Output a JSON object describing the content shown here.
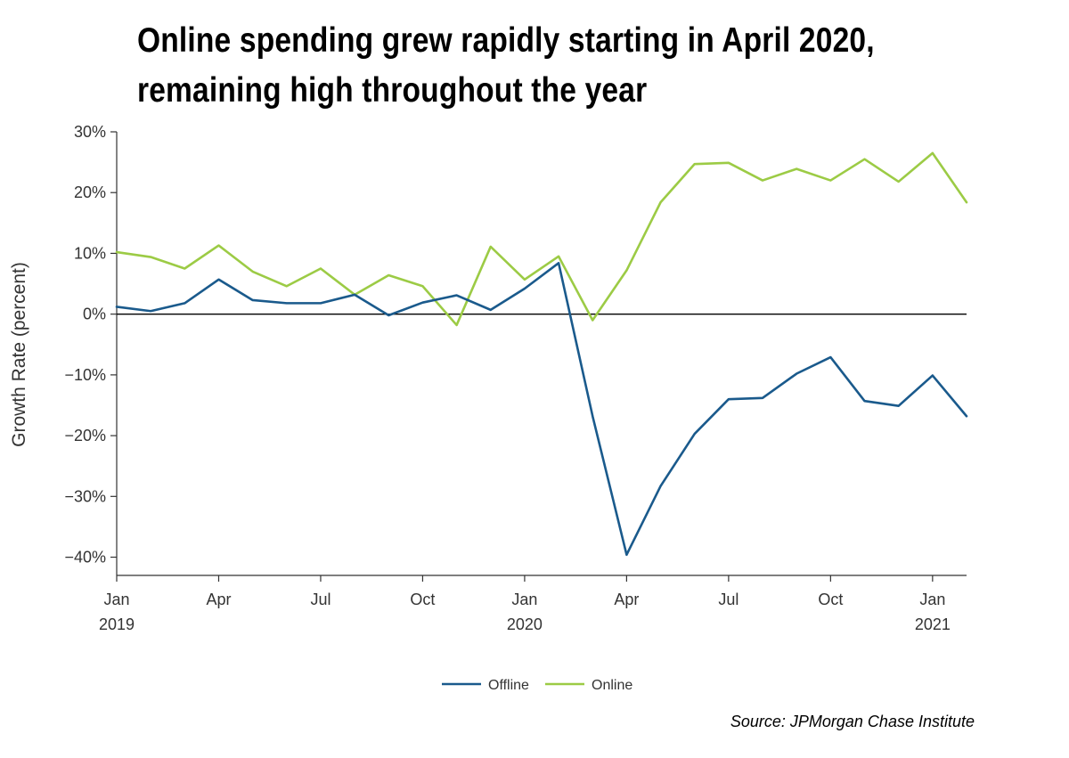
{
  "title_lines": [
    "Online spending grew rapidly starting in April 2020,",
    "remaining high throughout the year"
  ],
  "source": "Source: JPMorgan Chase Institute",
  "colors": {
    "offline": "#1a5a8c",
    "online": "#9ccb45",
    "axis": "#333333",
    "zero_line": "#000000"
  },
  "chart_data": {
    "type": "line",
    "title": "Online spending grew rapidly starting in April 2020, remaining high throughout the year",
    "xlabel": "",
    "ylabel": "Growth Rate (percent)",
    "ylim": [
      -43,
      30
    ],
    "yticks": [
      30,
      20,
      10,
      0,
      -10,
      -20,
      -30,
      -40
    ],
    "ytick_labels": [
      "30%",
      "20%",
      "10%",
      "0%",
      "−10%",
      "−20%",
      "−30%",
      "−40%"
    ],
    "x": [
      "2019-01",
      "2019-02",
      "2019-03",
      "2019-04",
      "2019-05",
      "2019-06",
      "2019-07",
      "2019-08",
      "2019-09",
      "2019-10",
      "2019-11",
      "2019-12",
      "2020-01",
      "2020-02",
      "2020-03",
      "2020-04",
      "2020-05",
      "2020-06",
      "2020-07",
      "2020-08",
      "2020-09",
      "2020-10",
      "2020-11",
      "2020-12",
      "2021-01",
      "2021-02"
    ],
    "xticks": [
      {
        "month": "2019-01",
        "label": "Jan",
        "year": "2019"
      },
      {
        "month": "2019-04",
        "label": "Apr",
        "year": ""
      },
      {
        "month": "2019-07",
        "label": "Jul",
        "year": ""
      },
      {
        "month": "2019-10",
        "label": "Oct",
        "year": ""
      },
      {
        "month": "2020-01",
        "label": "Jan",
        "year": "2020"
      },
      {
        "month": "2020-04",
        "label": "Apr",
        "year": ""
      },
      {
        "month": "2020-07",
        "label": "Jul",
        "year": ""
      },
      {
        "month": "2020-10",
        "label": "Oct",
        "year": ""
      },
      {
        "month": "2021-01",
        "label": "Jan",
        "year": "2021"
      }
    ],
    "series": [
      {
        "name": "Offline",
        "values": [
          1.2,
          0.5,
          1.8,
          5.7,
          2.3,
          1.8,
          1.8,
          3.2,
          -0.2,
          1.9,
          3.1,
          0.7,
          4.2,
          8.4,
          -16.8,
          -39.6,
          -28.3,
          -19.7,
          -14.0,
          -13.8,
          -9.8,
          -7.1,
          -14.3,
          -15.1,
          -10.1,
          -16.8
        ]
      },
      {
        "name": "Online",
        "values": [
          10.2,
          9.4,
          7.5,
          11.3,
          7.0,
          4.6,
          7.5,
          3.2,
          6.4,
          4.6,
          -1.8,
          11.1,
          5.7,
          9.5,
          -1.0,
          7.2,
          18.4,
          24.7,
          24.9,
          22.0,
          23.9,
          22.0,
          25.5,
          21.8,
          26.5,
          18.4
        ]
      }
    ],
    "legend_position": "bottom-center",
    "grid": false
  }
}
